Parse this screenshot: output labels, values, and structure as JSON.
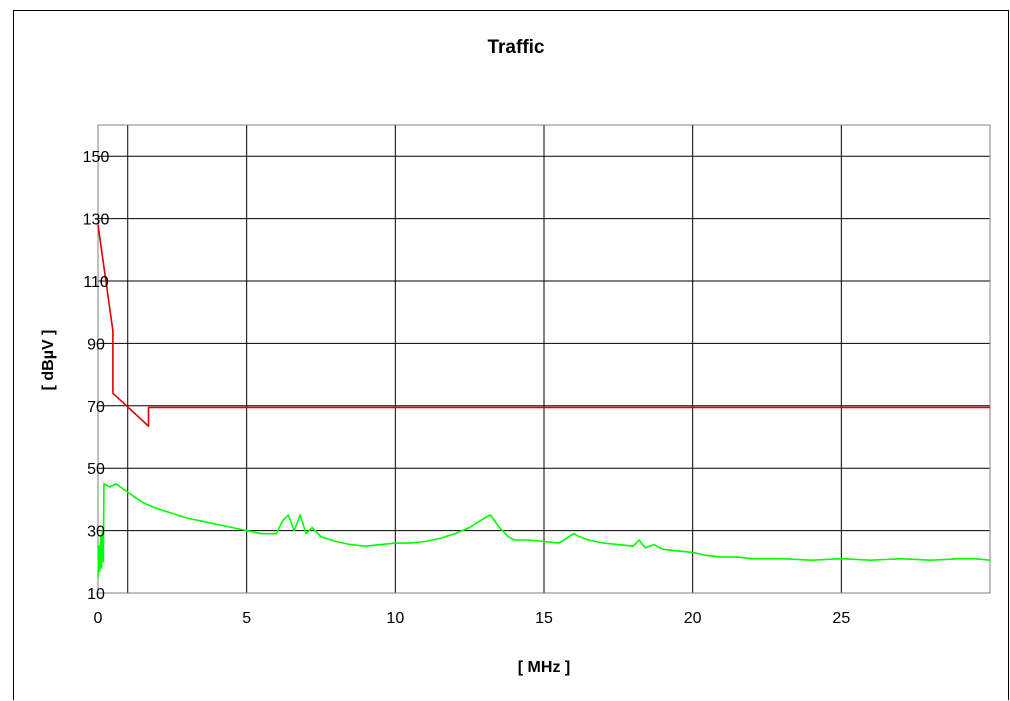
{
  "chart_data": {
    "type": "line",
    "title": "Traffic",
    "xlabel": "[ MHz ]",
    "ylabel": "[ dBµV ]",
    "xlim": [
      0,
      30
    ],
    "ylim": [
      10,
      160
    ],
    "x_ticks": [
      0,
      5,
      10,
      15,
      20,
      25
    ],
    "y_ticks": [
      10,
      30,
      50,
      70,
      90,
      110,
      130,
      150
    ],
    "x_gridlines": [
      0,
      1,
      5,
      10,
      15,
      20,
      25,
      30
    ],
    "y_gridlines": [
      10,
      30,
      50,
      70,
      90,
      110,
      130,
      150,
      160
    ],
    "grid": true,
    "series": [
      {
        "color": "#e00000",
        "points": [
          [
            0,
            128
          ],
          [
            0.5,
            94
          ],
          [
            0.5,
            74
          ],
          [
            1.7,
            63.5
          ],
          [
            1.7,
            69.5
          ],
          [
            30,
            69.5
          ]
        ]
      },
      {
        "color": "#00ff00",
        "points": [
          [
            0,
            15
          ],
          [
            0.03,
            25
          ],
          [
            0.06,
            17
          ],
          [
            0.09,
            28
          ],
          [
            0.12,
            18
          ],
          [
            0.15,
            30
          ],
          [
            0.18,
            20
          ],
          [
            0.2,
            45
          ],
          [
            0.4,
            44
          ],
          [
            0.6,
            45
          ],
          [
            0.9,
            43
          ],
          [
            1.2,
            41
          ],
          [
            1.5,
            39
          ],
          [
            2.0,
            37
          ],
          [
            2.5,
            35.5
          ],
          [
            3.0,
            34
          ],
          [
            3.5,
            33
          ],
          [
            4.0,
            32
          ],
          [
            4.5,
            31
          ],
          [
            5.0,
            30
          ],
          [
            5.5,
            29
          ],
          [
            6.0,
            29
          ],
          [
            6.2,
            33
          ],
          [
            6.4,
            35
          ],
          [
            6.6,
            30
          ],
          [
            6.8,
            35
          ],
          [
            7.0,
            29
          ],
          [
            7.2,
            31
          ],
          [
            7.5,
            28
          ],
          [
            8.0,
            26.5
          ],
          [
            8.5,
            25.5
          ],
          [
            9.0,
            25
          ],
          [
            9.5,
            25.5
          ],
          [
            10.0,
            26
          ],
          [
            10.5,
            26
          ],
          [
            11.0,
            26.5
          ],
          [
            11.5,
            27.5
          ],
          [
            12.0,
            29
          ],
          [
            12.5,
            31
          ],
          [
            13.0,
            34
          ],
          [
            13.2,
            35
          ],
          [
            13.5,
            31
          ],
          [
            13.8,
            28
          ],
          [
            14.0,
            27
          ],
          [
            14.5,
            27
          ],
          [
            15.0,
            26.5
          ],
          [
            15.5,
            26
          ],
          [
            16.0,
            29
          ],
          [
            16.2,
            28
          ],
          [
            16.5,
            27
          ],
          [
            17.0,
            26
          ],
          [
            17.5,
            25.5
          ],
          [
            18.0,
            25
          ],
          [
            18.2,
            27
          ],
          [
            18.4,
            24.5
          ],
          [
            18.7,
            25.5
          ],
          [
            19.0,
            24
          ],
          [
            19.5,
            23.5
          ],
          [
            20.0,
            23
          ],
          [
            20.5,
            22
          ],
          [
            21.0,
            21.5
          ],
          [
            21.5,
            21.5
          ],
          [
            22.0,
            21
          ],
          [
            22.5,
            21
          ],
          [
            23.0,
            21
          ],
          [
            24.0,
            20.5
          ],
          [
            25.0,
            21
          ],
          [
            26.0,
            20.5
          ],
          [
            27.0,
            21
          ],
          [
            28.0,
            20.5
          ],
          [
            29.0,
            21
          ],
          [
            29.5,
            21
          ],
          [
            30.0,
            20.5
          ]
        ]
      }
    ]
  }
}
